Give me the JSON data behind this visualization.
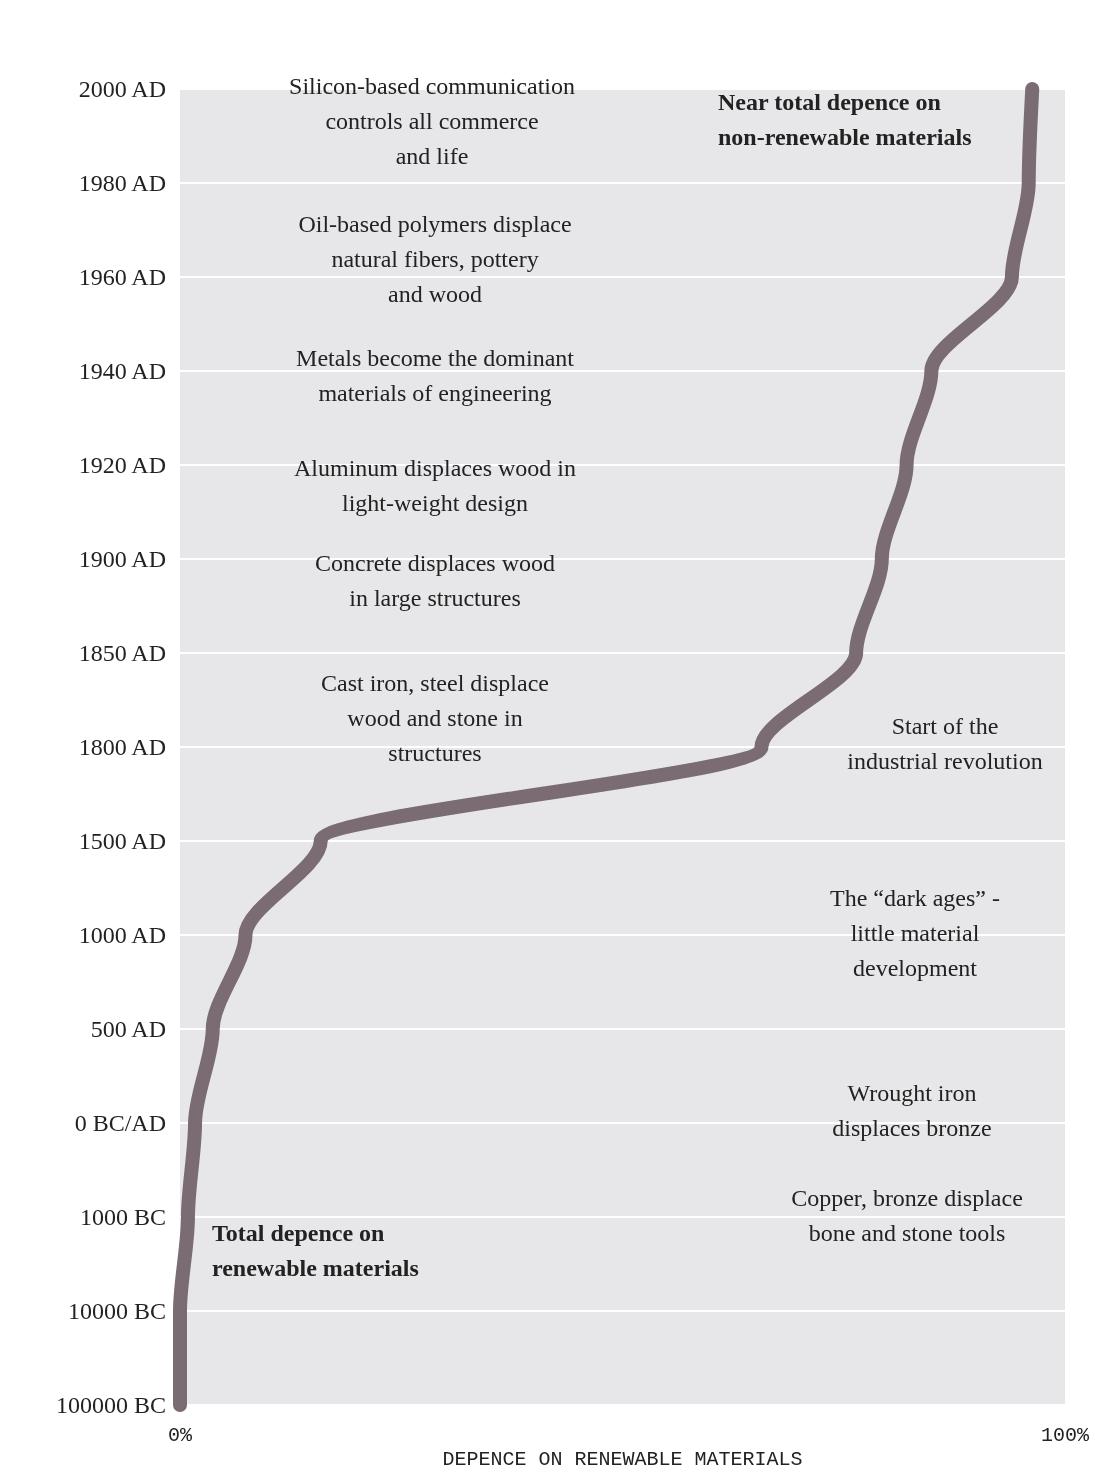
{
  "chart_data": {
    "type": "line",
    "orientation": "horizontal",
    "xlabel": "DEPENCE ON RENEWABLE MATERIALS",
    "xlim": [
      0,
      100
    ],
    "xticks": [
      {
        "value": 0,
        "label": "0%"
      },
      {
        "value": 100,
        "label": "100%"
      }
    ],
    "categories": [
      "2000 AD",
      "1980 AD",
      "1960 AD",
      "1940 AD",
      "1920 AD",
      "1900 AD",
      "1850 AD",
      "1800 AD",
      "1500 AD",
      "1000 AD",
      "500 AD",
      "0 BC/AD",
      "1000 BC",
      "10000 BC",
      "100000 BC"
    ],
    "grid": "y",
    "line_style": "solid",
    "series": [
      {
        "color": "#7b6b72",
        "values": [
          96.3,
          95.9,
          94.0,
          84.9,
          82.1,
          79.3,
          76.4,
          65.7,
          15.9,
          7.4,
          3.7,
          1.7,
          0.9,
          0,
          0
        ]
      }
    ],
    "annotations": [
      "Silicon-based communication\ncontrols all commerce\nand life",
      "Oil-based polymers displace\nnatural fibers, pottery\nand wood",
      "Metals become the dominant\nmaterials of engineering",
      "Aluminum displaces wood in\nlight-weight design",
      "Concrete displaces wood\nin large structures",
      "Cast iron, steel displace\nwood and stone in\nstructures",
      "Start of the\nindustrial revolution",
      "The “dark ages” -\nlittle material\ndevelopment",
      "Wrought iron\ndisplaces bronze",
      "Copper, bronze displace\nbone and stone tools",
      "Near total depence on\nnon-renewable materials",
      "Total depence on\nrenewable materials"
    ]
  }
}
